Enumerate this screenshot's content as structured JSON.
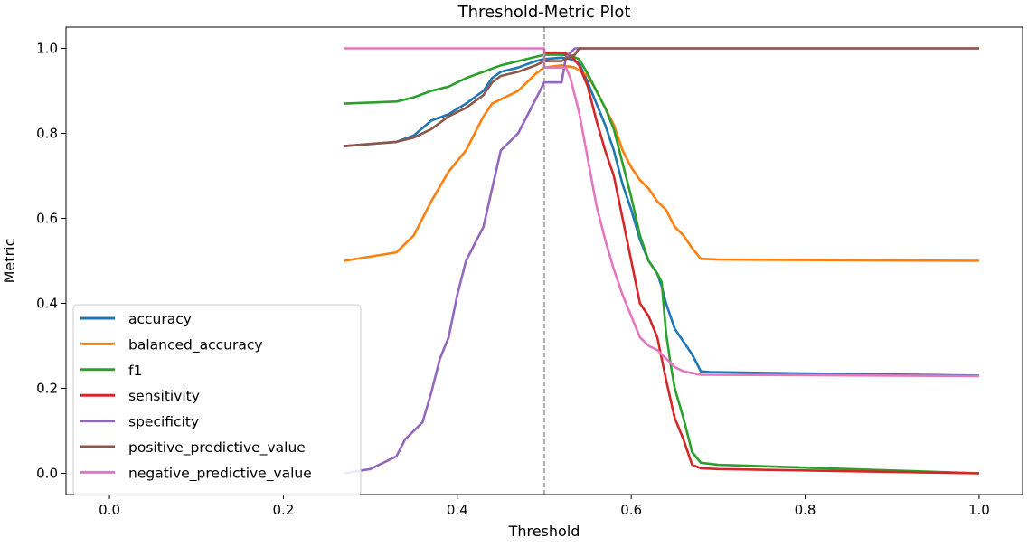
{
  "chart_data": {
    "type": "line",
    "title": "Threshold-Metric Plot",
    "xlabel": "Threshold",
    "ylabel": "Metric",
    "xlim": [
      -0.05,
      1.05
    ],
    "ylim": [
      -0.05,
      1.05
    ],
    "xticks": [
      0.0,
      0.2,
      0.4,
      0.6,
      0.8,
      1.0
    ],
    "xtick_labels": [
      "0.0",
      "0.2",
      "0.4",
      "0.6",
      "0.8",
      "1.0"
    ],
    "yticks": [
      0.0,
      0.2,
      0.4,
      0.6,
      0.8,
      1.0
    ],
    "ytick_labels": [
      "0.0",
      "0.2",
      "0.4",
      "0.6",
      "0.8",
      "1.0"
    ],
    "grid": false,
    "legend_position": "lower-left",
    "reference_line": {
      "x": 0.5,
      "style": "dashed",
      "color": "#7f7f7f"
    },
    "series": [
      {
        "name": "accuracy",
        "color": "#1f77b4",
        "points": [
          [
            0.27,
            0.77
          ],
          [
            0.33,
            0.78
          ],
          [
            0.35,
            0.795
          ],
          [
            0.37,
            0.83
          ],
          [
            0.39,
            0.845
          ],
          [
            0.41,
            0.87
          ],
          [
            0.43,
            0.9
          ],
          [
            0.44,
            0.93
          ],
          [
            0.45,
            0.945
          ],
          [
            0.47,
            0.955
          ],
          [
            0.49,
            0.97
          ],
          [
            0.5,
            0.975
          ],
          [
            0.52,
            0.978
          ],
          [
            0.53,
            0.975
          ],
          [
            0.54,
            0.965
          ],
          [
            0.55,
            0.92
          ],
          [
            0.56,
            0.87
          ],
          [
            0.57,
            0.82
          ],
          [
            0.58,
            0.76
          ],
          [
            0.59,
            0.68
          ],
          [
            0.6,
            0.62
          ],
          [
            0.61,
            0.55
          ],
          [
            0.62,
            0.5
          ],
          [
            0.63,
            0.47
          ],
          [
            0.635,
            0.44
          ],
          [
            0.64,
            0.4
          ],
          [
            0.65,
            0.34
          ],
          [
            0.66,
            0.31
          ],
          [
            0.67,
            0.28
          ],
          [
            0.68,
            0.24
          ],
          [
            0.69,
            0.238
          ],
          [
            0.8,
            0.235
          ],
          [
            1.0,
            0.23
          ]
        ]
      },
      {
        "name": "balanced_accuracy",
        "color": "#ff7f0e",
        "points": [
          [
            0.27,
            0.5
          ],
          [
            0.33,
            0.52
          ],
          [
            0.35,
            0.56
          ],
          [
            0.37,
            0.64
          ],
          [
            0.39,
            0.71
          ],
          [
            0.41,
            0.76
          ],
          [
            0.42,
            0.8
          ],
          [
            0.43,
            0.84
          ],
          [
            0.44,
            0.87
          ],
          [
            0.47,
            0.9
          ],
          [
            0.49,
            0.94
          ],
          [
            0.5,
            0.955
          ],
          [
            0.52,
            0.96
          ],
          [
            0.535,
            0.955
          ],
          [
            0.55,
            0.935
          ],
          [
            0.56,
            0.9
          ],
          [
            0.57,
            0.86
          ],
          [
            0.58,
            0.82
          ],
          [
            0.59,
            0.76
          ],
          [
            0.6,
            0.72
          ],
          [
            0.61,
            0.69
          ],
          [
            0.62,
            0.67
          ],
          [
            0.63,
            0.64
          ],
          [
            0.64,
            0.62
          ],
          [
            0.65,
            0.58
          ],
          [
            0.66,
            0.56
          ],
          [
            0.67,
            0.53
          ],
          [
            0.68,
            0.505
          ],
          [
            0.7,
            0.503
          ],
          [
            1.0,
            0.5
          ]
        ]
      },
      {
        "name": "f1",
        "color": "#2ca02c",
        "points": [
          [
            0.27,
            0.87
          ],
          [
            0.33,
            0.875
          ],
          [
            0.35,
            0.885
          ],
          [
            0.37,
            0.9
          ],
          [
            0.39,
            0.91
          ],
          [
            0.41,
            0.93
          ],
          [
            0.43,
            0.945
          ],
          [
            0.45,
            0.96
          ],
          [
            0.47,
            0.97
          ],
          [
            0.49,
            0.98
          ],
          [
            0.5,
            0.985
          ],
          [
            0.52,
            0.985
          ],
          [
            0.53,
            0.983
          ],
          [
            0.54,
            0.975
          ],
          [
            0.55,
            0.94
          ],
          [
            0.56,
            0.9
          ],
          [
            0.57,
            0.86
          ],
          [
            0.58,
            0.81
          ],
          [
            0.59,
            0.73
          ],
          [
            0.6,
            0.65
          ],
          [
            0.61,
            0.56
          ],
          [
            0.62,
            0.5
          ],
          [
            0.63,
            0.47
          ],
          [
            0.635,
            0.45
          ],
          [
            0.64,
            0.33
          ],
          [
            0.645,
            0.26
          ],
          [
            0.65,
            0.2
          ],
          [
            0.66,
            0.13
          ],
          [
            0.67,
            0.05
          ],
          [
            0.68,
            0.025
          ],
          [
            0.7,
            0.02
          ],
          [
            1.0,
            0.0
          ]
        ]
      },
      {
        "name": "sensitivity",
        "color": "#d62728",
        "points": [
          [
            0.5,
            0.99
          ],
          [
            0.52,
            0.99
          ],
          [
            0.53,
            0.985
          ],
          [
            0.54,
            0.96
          ],
          [
            0.55,
            0.91
          ],
          [
            0.56,
            0.83
          ],
          [
            0.57,
            0.76
          ],
          [
            0.58,
            0.7
          ],
          [
            0.59,
            0.6
          ],
          [
            0.6,
            0.5
          ],
          [
            0.61,
            0.4
          ],
          [
            0.62,
            0.37
          ],
          [
            0.63,
            0.32
          ],
          [
            0.64,
            0.22
          ],
          [
            0.65,
            0.13
          ],
          [
            0.66,
            0.08
          ],
          [
            0.67,
            0.02
          ],
          [
            0.68,
            0.012
          ],
          [
            0.7,
            0.01
          ],
          [
            1.0,
            0.0
          ]
        ]
      },
      {
        "name": "specificity",
        "color": "#9467bd",
        "points": [
          [
            0.27,
            0.0
          ],
          [
            0.3,
            0.01
          ],
          [
            0.33,
            0.04
          ],
          [
            0.34,
            0.08
          ],
          [
            0.36,
            0.12
          ],
          [
            0.37,
            0.19
          ],
          [
            0.38,
            0.27
          ],
          [
            0.39,
            0.32
          ],
          [
            0.4,
            0.42
          ],
          [
            0.41,
            0.5
          ],
          [
            0.43,
            0.58
          ],
          [
            0.44,
            0.67
          ],
          [
            0.45,
            0.76
          ],
          [
            0.47,
            0.8
          ],
          [
            0.49,
            0.88
          ],
          [
            0.5,
            0.92
          ],
          [
            0.52,
            0.92
          ],
          [
            0.525,
            0.98
          ],
          [
            0.535,
            1.0
          ],
          [
            0.55,
            1.0
          ],
          [
            1.0,
            1.0
          ]
        ]
      },
      {
        "name": "positive_predictive_value",
        "color": "#8c564b",
        "points": [
          [
            0.27,
            0.77
          ],
          [
            0.33,
            0.78
          ],
          [
            0.35,
            0.79
          ],
          [
            0.37,
            0.81
          ],
          [
            0.39,
            0.84
          ],
          [
            0.41,
            0.86
          ],
          [
            0.43,
            0.89
          ],
          [
            0.44,
            0.92
          ],
          [
            0.45,
            0.935
          ],
          [
            0.47,
            0.945
          ],
          [
            0.49,
            0.96
          ],
          [
            0.5,
            0.97
          ],
          [
            0.52,
            0.97
          ],
          [
            0.535,
            0.985
          ],
          [
            0.54,
            1.0
          ],
          [
            1.0,
            1.0
          ]
        ]
      },
      {
        "name": "negative_predictive_value",
        "color": "#e377c2",
        "points": [
          [
            0.27,
            1.0
          ],
          [
            0.5,
            1.0
          ],
          [
            0.5,
            0.955
          ],
          [
            0.525,
            0.955
          ],
          [
            0.53,
            0.93
          ],
          [
            0.54,
            0.85
          ],
          [
            0.55,
            0.74
          ],
          [
            0.56,
            0.63
          ],
          [
            0.57,
            0.55
          ],
          [
            0.58,
            0.48
          ],
          [
            0.59,
            0.42
          ],
          [
            0.6,
            0.37
          ],
          [
            0.61,
            0.32
          ],
          [
            0.62,
            0.3
          ],
          [
            0.63,
            0.29
          ],
          [
            0.64,
            0.27
          ],
          [
            0.65,
            0.25
          ],
          [
            0.66,
            0.24
          ],
          [
            0.68,
            0.232
          ],
          [
            0.8,
            0.231
          ],
          [
            1.0,
            0.229
          ]
        ]
      }
    ]
  }
}
